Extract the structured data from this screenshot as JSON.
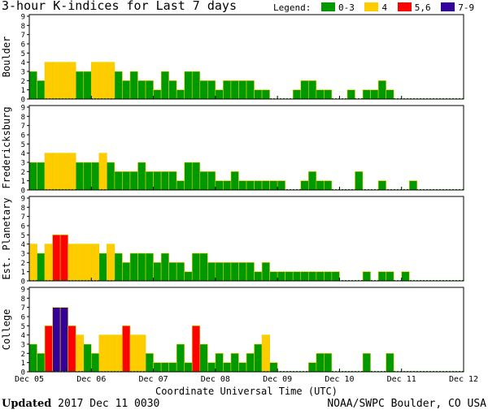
{
  "title": "3-hour K-indices for Last 7 days",
  "legend": {
    "label": "Legend:",
    "items": [
      {
        "label": "0-3",
        "color": "#009900"
      },
      {
        "label": "4",
        "color": "#ffcc00"
      },
      {
        "label": "5,6",
        "color": "#ff0000"
      },
      {
        "label": "7-9",
        "color": "#330099"
      }
    ]
  },
  "footer": {
    "updated_label": "Updated",
    "updated_value": "2017 Dec 11 0030",
    "source": "NOAA/SWPC Boulder, CO USA"
  },
  "chart_data": {
    "type": "bar",
    "xlabel": "Coordinate Universal Time (UTC)",
    "x_ticks": [
      "Dec 05",
      "Dec 06",
      "Dec 07",
      "Dec 08",
      "Dec 09",
      "Dec 10",
      "Dec 11",
      "Dec 12"
    ],
    "ylim": [
      0,
      9
    ],
    "y_ticks": [
      0,
      1,
      2,
      3,
      4,
      5,
      6,
      7,
      8,
      9
    ],
    "series": [
      {
        "name": "Boulder",
        "values": [
          3,
          2,
          4,
          4,
          4,
          4,
          3,
          3,
          4,
          4,
          4,
          3,
          2,
          3,
          2,
          2,
          1,
          3,
          2,
          1,
          3,
          3,
          2,
          2,
          1,
          2,
          2,
          2,
          2,
          1,
          1,
          0,
          0,
          0,
          1,
          2,
          2,
          1,
          1,
          0,
          0,
          1,
          0,
          1,
          1,
          2,
          1,
          0,
          0,
          0,
          0,
          0,
          0,
          0,
          0,
          0
        ]
      },
      {
        "name": "Fredericksburg",
        "values": [
          3,
          3,
          4,
          4,
          4,
          4,
          3,
          3,
          3,
          4,
          3,
          2,
          2,
          2,
          3,
          2,
          2,
          2,
          2,
          1,
          3,
          3,
          2,
          2,
          1,
          1,
          2,
          1,
          1,
          1,
          1,
          1,
          1,
          0,
          0,
          1,
          2,
          1,
          1,
          0,
          0,
          0,
          2,
          0,
          0,
          1,
          0,
          0,
          0,
          1,
          0,
          0,
          0,
          0,
          0,
          0
        ]
      },
      {
        "name": "Est. Planetary",
        "values": [
          4,
          3,
          4,
          5,
          5,
          4,
          4,
          4,
          4,
          3,
          4,
          3,
          2,
          3,
          3,
          3,
          2,
          3,
          2,
          2,
          1,
          3,
          3,
          2,
          2,
          2,
          2,
          2,
          2,
          1,
          2,
          1,
          1,
          1,
          1,
          1,
          1,
          1,
          1,
          1,
          0,
          0,
          0,
          1,
          0,
          1,
          1,
          0,
          1,
          0,
          0,
          0,
          0,
          0,
          0,
          0
        ]
      },
      {
        "name": "College",
        "values": [
          3,
          2,
          5,
          7,
          7,
          5,
          4,
          3,
          2,
          4,
          4,
          4,
          5,
          4,
          4,
          2,
          1,
          1,
          1,
          3,
          1,
          5,
          3,
          1,
          2,
          1,
          2,
          1,
          2,
          3,
          4,
          1,
          0,
          0,
          0,
          0,
          1,
          2,
          2,
          0,
          0,
          0,
          0,
          2,
          0,
          0,
          2,
          0,
          0,
          0,
          0,
          0,
          0,
          0,
          0,
          0
        ]
      }
    ]
  }
}
